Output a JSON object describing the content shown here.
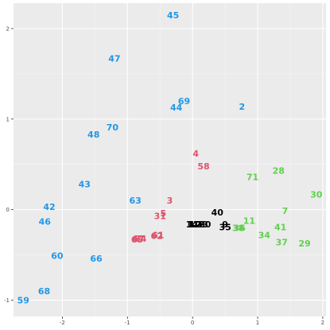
{
  "chart_data": {
    "type": "scatter",
    "title": "",
    "xlabel": "",
    "ylabel": "",
    "xlim": [
      -2.75,
      2.05
    ],
    "ylim": [
      -1.18,
      2.28
    ],
    "x_ticks": [
      -2,
      -1,
      0,
      1,
      2
    ],
    "y_ticks": [
      -1,
      0,
      1,
      2
    ],
    "x_tick_labels": [
      "-2",
      "-1",
      "0",
      "1",
      "2"
    ],
    "y_tick_labels": [
      "-1",
      "0",
      "1",
      "2"
    ],
    "grid": true,
    "colors": {
      "panel": "#ebebeb",
      "grid_major": "#ffffff",
      "blue": "#2297e6",
      "red": "#df536b",
      "green": "#61d04f",
      "black": "#000000"
    },
    "groups": [
      {
        "color": "blue",
        "points": [
          {
            "label": "45",
            "x": -0.3,
            "y": 2.15
          },
          {
            "label": "47",
            "x": -1.2,
            "y": 1.67
          },
          {
            "label": "69",
            "x": -0.13,
            "y": 1.2
          },
          {
            "label": "44",
            "x": -0.25,
            "y": 1.13
          },
          {
            "label": "2",
            "x": 0.76,
            "y": 1.14
          },
          {
            "label": "70",
            "x": -1.23,
            "y": 0.91
          },
          {
            "label": "48",
            "x": -1.52,
            "y": 0.83
          },
          {
            "label": "43",
            "x": -1.66,
            "y": 0.28
          },
          {
            "label": "63",
            "x": -0.88,
            "y": 0.1
          },
          {
            "label": "42",
            "x": -2.2,
            "y": 0.03
          },
          {
            "label": "46",
            "x": -2.27,
            "y": -0.13
          },
          {
            "label": "60",
            "x": -2.08,
            "y": -0.51
          },
          {
            "label": "66",
            "x": -1.48,
            "y": -0.54
          },
          {
            "label": "68",
            "x": -2.28,
            "y": -0.9
          },
          {
            "label": "59",
            "x": -2.6,
            "y": -1.0
          }
        ]
      },
      {
        "color": "red",
        "points": [
          {
            "label": "4",
            "x": 0.05,
            "y": 0.62
          },
          {
            "label": "58",
            "x": 0.17,
            "y": 0.48
          },
          {
            "label": "3",
            "x": -0.35,
            "y": 0.1
          },
          {
            "label": "5",
            "x": -0.45,
            "y": -0.04
          },
          {
            "label": "31",
            "x": -0.5,
            "y": -0.07
          },
          {
            "label": "61",
            "x": -0.53,
            "y": -0.28
          },
          {
            "label": "62",
            "x": -0.55,
            "y": -0.29
          },
          {
            "label": "64",
            "x": -0.8,
            "y": -0.32
          },
          {
            "label": "65",
            "x": -0.85,
            "y": -0.33
          },
          {
            "label": "67",
            "x": -0.83,
            "y": -0.32
          }
        ]
      },
      {
        "color": "green",
        "points": [
          {
            "label": "28",
            "x": 1.32,
            "y": 0.43
          },
          {
            "label": "71",
            "x": 0.92,
            "y": 0.36
          },
          {
            "label": "30",
            "x": 1.9,
            "y": 0.17
          },
          {
            "label": "7",
            "x": 1.42,
            "y": -0.01
          },
          {
            "label": "11",
            "x": 0.87,
            "y": -0.12
          },
          {
            "label": "41",
            "x": 1.35,
            "y": -0.19
          },
          {
            "label": "36",
            "x": 0.72,
            "y": -0.2
          },
          {
            "label": "38",
            "x": 0.7,
            "y": -0.2
          },
          {
            "label": "34",
            "x": 1.1,
            "y": -0.28
          },
          {
            "label": "37",
            "x": 1.37,
            "y": -0.36
          },
          {
            "label": "29",
            "x": 1.72,
            "y": -0.37
          }
        ]
      },
      {
        "color": "black",
        "points": [
          {
            "label": "40",
            "x": 0.38,
            "y": -0.03
          },
          {
            "label": "1",
            "x": -0.03,
            "y": -0.16
          },
          {
            "label": "14",
            "x": -0.01,
            "y": -0.16
          },
          {
            "label": "12",
            "x": 0.04,
            "y": -0.16
          },
          {
            "label": "18",
            "x": 0.1,
            "y": -0.16
          },
          {
            "label": "23",
            "x": 0.15,
            "y": -0.16
          },
          {
            "label": "20",
            "x": 0.19,
            "y": -0.16
          },
          {
            "label": "9",
            "x": 0.5,
            "y": -0.16
          },
          {
            "label": "35",
            "x": 0.5,
            "y": -0.19
          }
        ]
      }
    ]
  }
}
